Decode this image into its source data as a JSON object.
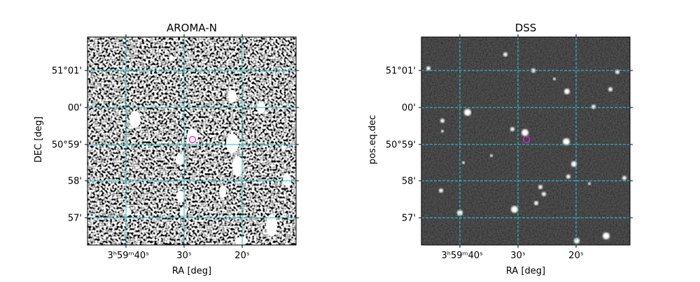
{
  "panels": [
    {
      "title": "AROMA-N",
      "x_label": "RA [deg]",
      "y_label": "DEC [deg]",
      "x_tick_labels": [
        "3ʰ59ᵐ40ˢ",
        "30ˢ",
        "20ˢ"
      ],
      "y_tick_labels": [
        "51°01'",
        "00'",
        "50°59'",
        "58'",
        "57'"
      ]
    },
    {
      "title": "DSS",
      "x_label": "RA [deg]",
      "y_label": "pos.eq.dec",
      "x_tick_labels": [
        "3ʰ59ᵐ40ˢ",
        "30ˢ",
        "20ˢ"
      ],
      "y_tick_labels": [
        "51°01'",
        "00'",
        "50°59'",
        "58'",
        "57'"
      ]
    }
  ]
}
